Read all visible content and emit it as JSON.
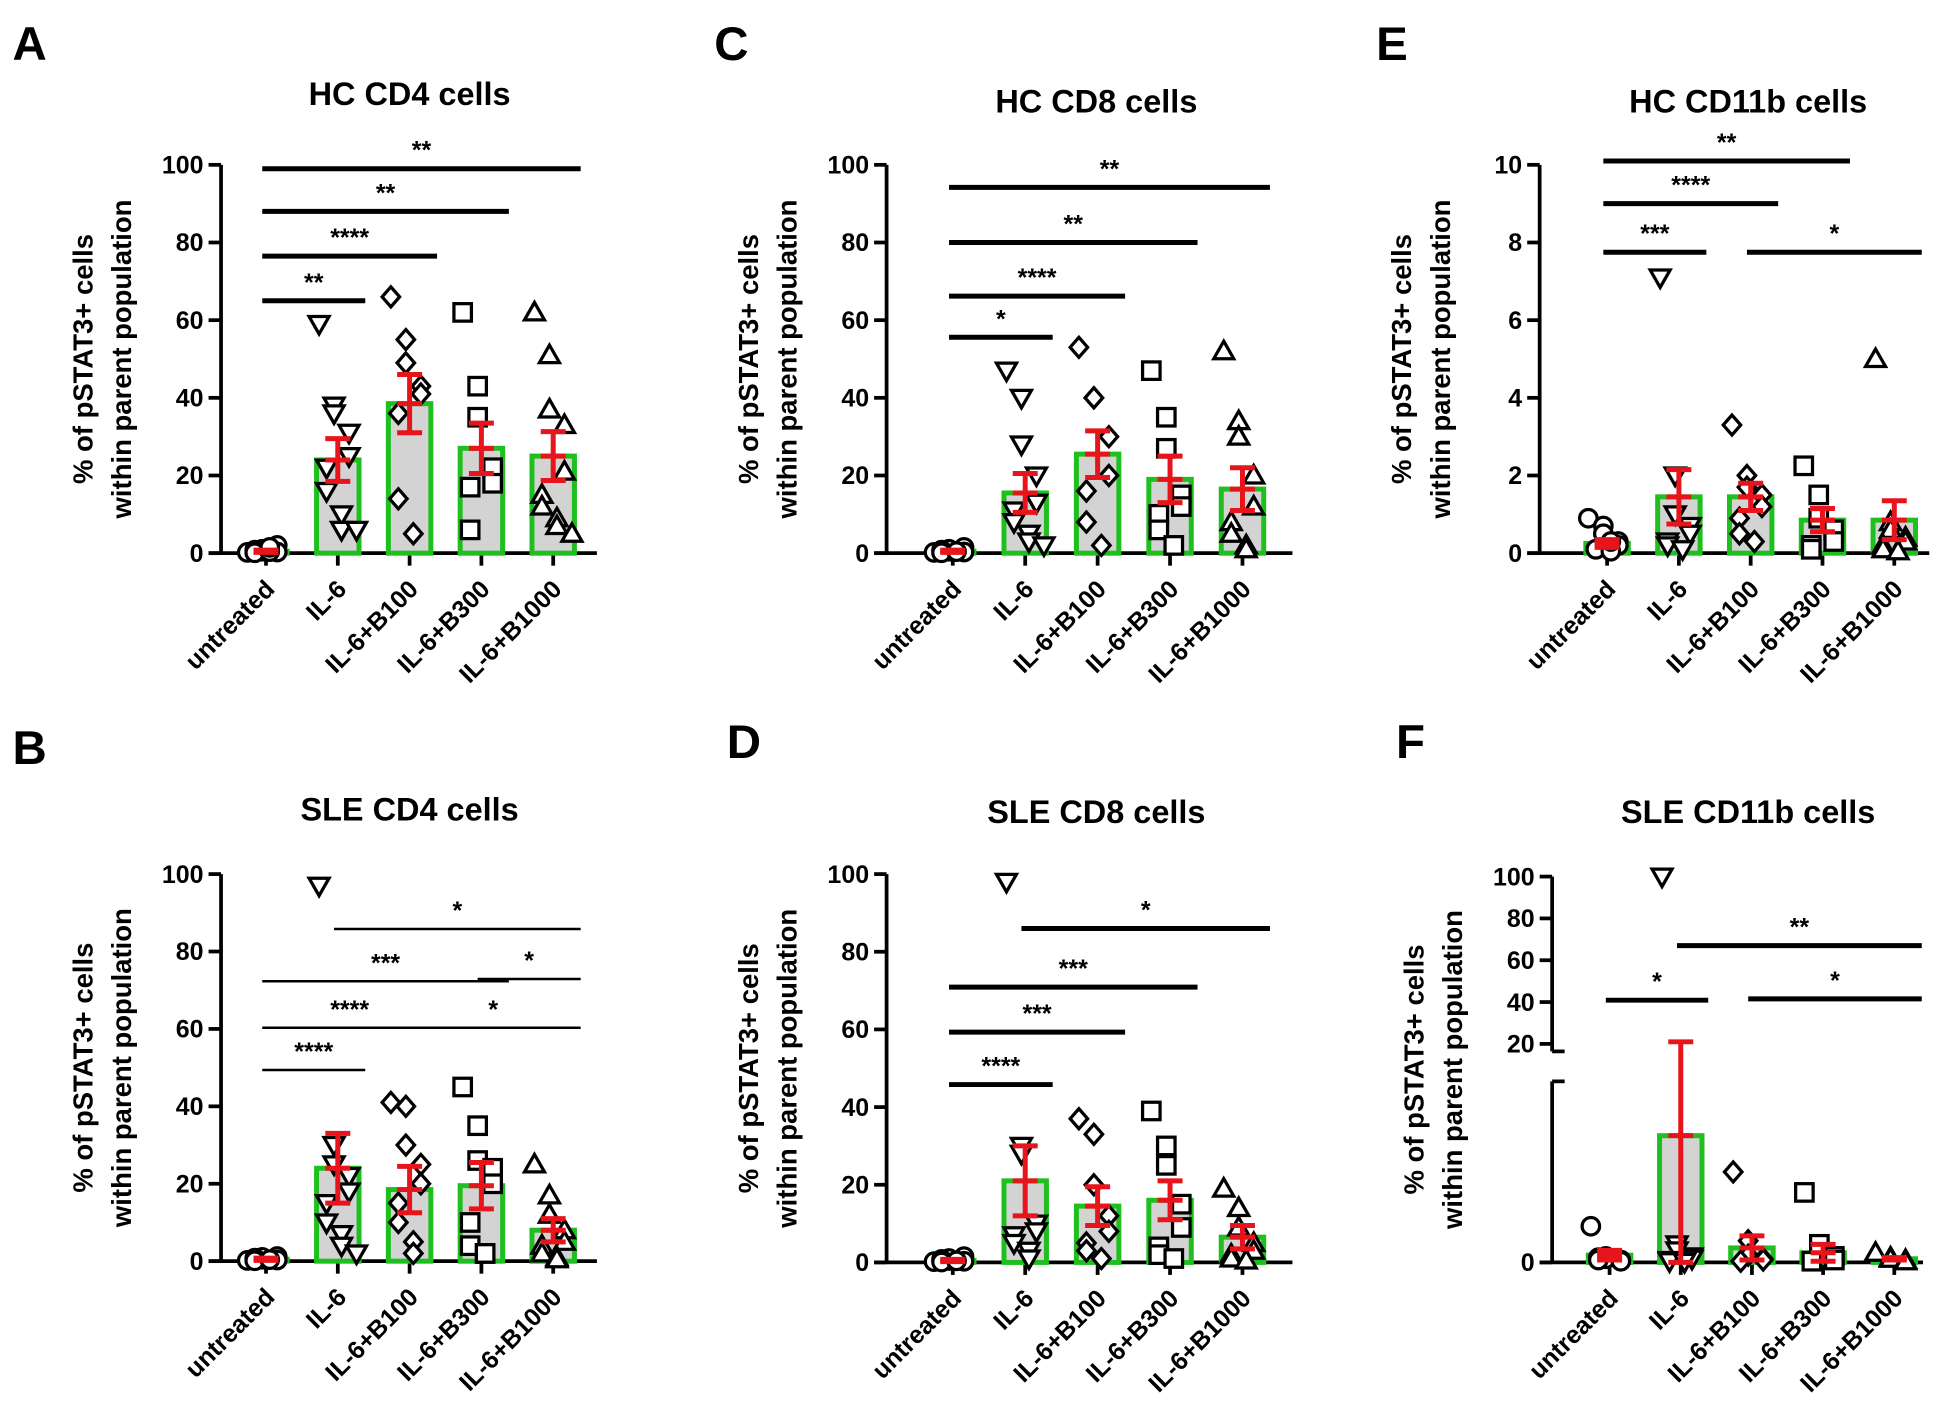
{
  "colors": {
    "bar_fill": "#d3d3d3",
    "bar_stroke": "#1fbf1f",
    "error": "#e8141b",
    "axis": "#000000"
  },
  "y_axis_label": [
    "% of pSTAT3+ cells",
    "within parent population"
  ],
  "chart_data": [
    {
      "panel": "A",
      "type": "bar",
      "title": "HC CD4 cells",
      "categories": [
        "untreated",
        "IL-6",
        "IL-6+B100",
        "IL-6+B300",
        "IL-6+B1000"
      ],
      "markers": [
        "circle",
        "triangle-down",
        "diamond",
        "square",
        "triangle-up"
      ],
      "ylim": [
        0,
        100
      ],
      "yticks": [
        0,
        20,
        40,
        60,
        80,
        100
      ],
      "means": [
        0.5,
        24,
        38.5,
        27,
        25
      ],
      "sem": [
        0.3,
        5.5,
        7.5,
        6.5,
        6.3
      ],
      "points": [
        [
          0.2,
          0.5,
          1,
          2,
          0.3,
          0.8,
          0.1,
          0.4,
          1.5
        ],
        [
          59,
          38,
          36,
          31,
          25,
          22,
          16,
          10,
          6,
          6
        ],
        [
          66,
          55,
          49,
          43,
          41,
          36,
          14,
          5
        ],
        [
          62,
          43,
          35,
          22,
          18,
          17,
          6
        ],
        [
          62,
          51,
          37,
          33,
          21,
          15,
          12,
          9,
          7,
          5
        ]
      ],
      "significance": [
        {
          "from": 0,
          "to": 1,
          "y": 65,
          "label": "**"
        },
        {
          "from": 0,
          "to": 2,
          "y": 76.5,
          "label": "****"
        },
        {
          "from": 0,
          "to": 3,
          "y": 88,
          "label": "**"
        },
        {
          "from": 0,
          "to": 4,
          "y": 99,
          "label": "**"
        }
      ]
    },
    {
      "panel": "C",
      "type": "bar",
      "title": "HC CD8 cells",
      "categories": [
        "untreated",
        "IL-6",
        "IL-6+B100",
        "IL-6+B300",
        "IL-6+B1000"
      ],
      "markers": [
        "circle",
        "triangle-down",
        "diamond",
        "square",
        "triangle-up"
      ],
      "ylim": [
        0,
        100
      ],
      "yticks": [
        0,
        20,
        40,
        60,
        80,
        100
      ],
      "means": [
        0.5,
        15.5,
        25.5,
        19,
        16.5
      ],
      "sem": [
        0.3,
        5,
        6,
        6,
        5.5
      ],
      "points": [
        [
          0.2,
          0.5,
          1,
          1.5,
          0.3,
          0.8,
          0.1,
          0.4
        ],
        [
          47,
          40,
          28,
          20,
          13,
          11,
          8,
          5,
          3,
          2
        ],
        [
          53,
          40,
          40,
          30,
          20,
          16,
          8,
          2
        ],
        [
          47,
          35,
          27,
          15,
          12,
          10,
          6,
          2
        ],
        [
          52,
          34,
          30,
          20,
          12,
          8,
          5,
          2,
          1
        ]
      ],
      "significance": [
        {
          "from": 0,
          "to": 1,
          "y": 55.6,
          "label": "*"
        },
        {
          "from": 0,
          "to": 2,
          "y": 66.2,
          "label": "****"
        },
        {
          "from": 0,
          "to": 3,
          "y": 80,
          "label": "**"
        },
        {
          "from": 0,
          "to": 4,
          "y": 94.2,
          "label": "**"
        }
      ]
    },
    {
      "panel": "E",
      "type": "bar",
      "title": "HC CD11b cells",
      "categories": [
        "untreated",
        "IL-6",
        "IL-6+B100",
        "IL-6+B300",
        "IL-6+B1000"
      ],
      "markers": [
        "circle",
        "triangle-down",
        "diamond",
        "square",
        "triangle-up"
      ],
      "ylim": [
        0,
        10
      ],
      "yticks": [
        0,
        2,
        4,
        6,
        8,
        10
      ],
      "means": [
        0.25,
        1.45,
        1.45,
        0.85,
        0.85
      ],
      "sem": [
        0.1,
        0.7,
        0.35,
        0.3,
        0.5
      ],
      "points": [
        [
          0.9,
          0.7,
          0.5,
          0.3,
          0.2,
          0.1,
          0.1,
          0.05,
          0.3
        ],
        [
          7.1,
          2.0,
          1.0,
          0.7,
          0.5,
          0.3,
          0.2,
          0.1
        ],
        [
          3.3,
          2.0,
          1.7,
          1.5,
          1.2,
          0.9,
          0.5,
          0.3
        ],
        [
          2.25,
          1.5,
          0.9,
          0.6,
          0.3,
          0.2,
          0.1
        ],
        [
          5.0,
          0.8,
          0.6,
          0.4,
          0.3,
          0.2,
          0.1,
          0.05
        ]
      ],
      "significance": [
        {
          "from": 0,
          "to": 1,
          "y": 7.75,
          "label": "***"
        },
        {
          "from": 0,
          "to": 2,
          "y": 9.0,
          "label": "****"
        },
        {
          "from": 0,
          "to": 3,
          "y": 10.1,
          "label": "**"
        },
        {
          "from": 2,
          "to": 4,
          "y": 7.75,
          "label": "*"
        }
      ]
    },
    {
      "panel": "B",
      "type": "bar",
      "title": "SLE CD4 cells",
      "categories": [
        "untreated",
        "IL-6",
        "IL-6+B100",
        "IL-6+B300",
        "IL-6+B1000"
      ],
      "markers": [
        "circle",
        "triangle-down",
        "diamond",
        "square",
        "triangle-up"
      ],
      "ylim": [
        0,
        100
      ],
      "yticks": [
        0,
        20,
        40,
        60,
        80,
        100
      ],
      "means": [
        0.5,
        24,
        18.5,
        19.5,
        8
      ],
      "sem": [
        0.3,
        9,
        6,
        6,
        3
      ],
      "points": [
        [
          0.2,
          0.5,
          1,
          1.2,
          0.3,
          0.8,
          0.1,
          0.4
        ],
        [
          97,
          30,
          25,
          22,
          18,
          15,
          10,
          7,
          4,
          2
        ],
        [
          41,
          40,
          30,
          25,
          20,
          15,
          10,
          5,
          2
        ],
        [
          45,
          35,
          26,
          24,
          20,
          10,
          4,
          2,
          2
        ],
        [
          25,
          17,
          12,
          8,
          5,
          4,
          2,
          1,
          0.5
        ]
      ],
      "significance": [
        {
          "from": 0,
          "to": 1,
          "y": 49.4,
          "label": "****"
        },
        {
          "from": 0,
          "to": 2,
          "y": 60.3,
          "label": "****"
        },
        {
          "from": 0,
          "to": 3,
          "y": 72.3,
          "label": "***"
        },
        {
          "from": 1,
          "to": 4,
          "y": 85.8,
          "label": "*"
        },
        {
          "from": 2,
          "to": 4,
          "y": 60.3,
          "label": "*"
        },
        {
          "from": 3,
          "to": 4,
          "y": 72.9,
          "label": "*"
        }
      ]
    },
    {
      "panel": "D",
      "type": "bar",
      "title": "SLE CD8 cells",
      "categories": [
        "untreated",
        "IL-6",
        "IL-6+B100",
        "IL-6+B300",
        "IL-6+B1000"
      ],
      "markers": [
        "circle",
        "triangle-down",
        "diamond",
        "square",
        "triangle-up"
      ],
      "ylim": [
        0,
        100
      ],
      "yticks": [
        0,
        20,
        40,
        60,
        80,
        100
      ],
      "means": [
        0.5,
        21,
        14.5,
        16,
        6.5
      ],
      "sem": [
        0.3,
        9,
        5,
        5,
        3
      ],
      "points": [
        [
          0.2,
          0.5,
          1,
          1.5,
          0.3,
          0.8,
          0.1,
          0.4
        ],
        [
          98,
          30,
          28,
          10,
          8,
          7,
          5,
          3,
          1
        ],
        [
          37,
          33,
          20,
          12,
          8,
          5,
          3,
          1
        ],
        [
          39,
          30,
          25,
          15,
          9,
          4,
          2,
          1
        ],
        [
          19,
          14,
          9,
          5,
          3,
          2,
          1,
          0.5
        ]
      ],
      "significance": [
        {
          "from": 0,
          "to": 1,
          "y": 45.8,
          "label": "****"
        },
        {
          "from": 0,
          "to": 2,
          "y": 59.3,
          "label": "***"
        },
        {
          "from": 0,
          "to": 3,
          "y": 70.9,
          "label": "***"
        },
        {
          "from": 1,
          "to": 4,
          "y": 86.0,
          "label": "*"
        }
      ]
    },
    {
      "panel": "F",
      "type": "bar",
      "title": "SLE CD11b cells",
      "categories": [
        "untreated",
        "IL-6",
        "IL-6+B100",
        "IL-6+B300",
        "IL-6+B1000"
      ],
      "markers": [
        "circle",
        "triangle-down",
        "diamond",
        "square",
        "triangle-up"
      ],
      "ylim": [
        0,
        100
      ],
      "axis_break": [
        15,
        20
      ],
      "yticks": [
        0,
        20,
        40,
        60,
        80,
        100
      ],
      "means": [
        0.6,
        10.5,
        1.2,
        0.8,
        0.3
      ],
      "sem": [
        0.4,
        10.5,
        1.0,
        0.7,
        0.1
      ],
      "points": [
        [
          3,
          0.5,
          0.3,
          0.2,
          0.1,
          0.4,
          0.2
        ],
        [
          100,
          1.5,
          1,
          0.5,
          0.3,
          0.2,
          0.1,
          0.05
        ],
        [
          7.5,
          1.8,
          0.6,
          0.3,
          0.2,
          0.1
        ],
        [
          5.8,
          1.5,
          0.8,
          0.5,
          0.2,
          0.1
        ],
        [
          0.8,
          0.4,
          0.3,
          0.2,
          0.1
        ]
      ],
      "significance": [
        {
          "from": 0,
          "to": 1,
          "y": 40.9,
          "label": "*"
        },
        {
          "from": 1,
          "to": 4,
          "y": 67,
          "label": "**"
        },
        {
          "from": 2,
          "to": 4,
          "y": 41.5,
          "label": "*"
        }
      ]
    }
  ]
}
